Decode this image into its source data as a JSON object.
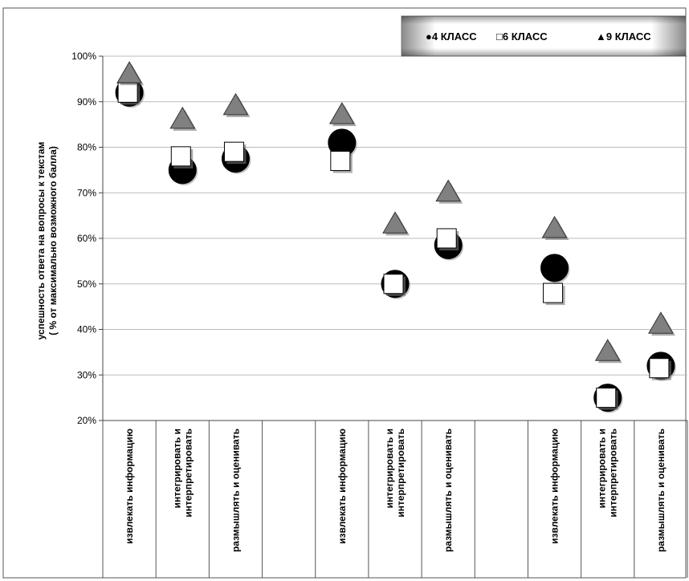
{
  "chart_data": {
    "type": "scatter",
    "ylabel_lines": [
      "успешность ответа на вопросы к текстам",
      "( % от максимально возможного балла)"
    ],
    "yticks": [
      "20%",
      "30%",
      "40%",
      "50%",
      "60%",
      "70%",
      "80%",
      "90%",
      "100%"
    ],
    "ylim": [
      20,
      100
    ],
    "grid": true,
    "legend_position": "top-right",
    "categories": [
      [
        "извлекать информацию"
      ],
      [
        "интегрировать и",
        "интерпретировать"
      ],
      [
        "размышлять и оценивать"
      ],
      [
        ""
      ],
      [
        "извлекать информацию"
      ],
      [
        "интегрировать и",
        "интерпретировать"
      ],
      [
        "размышлять и оценивать"
      ],
      [
        ""
      ],
      [
        "извлекать информацию"
      ],
      [
        "интегрировать и",
        "интерпретировать"
      ],
      [
        "размышлять и оценивать"
      ]
    ],
    "series": [
      {
        "name": "●4 КЛАСС",
        "marker": "circle",
        "color": "#000000",
        "values": [
          92,
          75,
          77.5,
          null,
          81,
          50,
          58.5,
          null,
          53.5,
          25,
          32
        ]
      },
      {
        "name": "□6 КЛАСС",
        "marker": "square",
        "color": "#ffffff",
        "values": [
          92,
          78,
          79,
          null,
          77,
          50,
          60,
          null,
          48,
          25,
          31.5
        ]
      },
      {
        "name": "▲9 КЛАСС",
        "marker": "triangle",
        "color": "#808080",
        "values": [
          96,
          86,
          89,
          null,
          87,
          63,
          70,
          null,
          62,
          35,
          41
        ]
      }
    ]
  }
}
